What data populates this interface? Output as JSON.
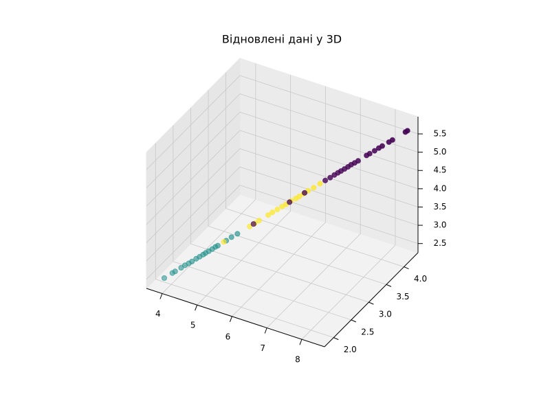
{
  "chart_data": {
    "type": "scatter3d",
    "title": "Відновлені дані у 3D",
    "xlim": [
      3.55,
      8.65
    ],
    "ylim": [
      1.74,
      4.4
    ],
    "zlim": [
      2.25,
      5.97
    ],
    "xticks": [
      4,
      5,
      6,
      7,
      8
    ],
    "yticks": [
      {
        "value": 2.0,
        "label": "2.0"
      },
      2.5,
      {
        "value": 3.0,
        "label": "3.0"
      },
      3.5,
      {
        "value": 4.0,
        "label": "4.0"
      }
    ],
    "zticks": [
      2.5,
      {
        "value": 3.0,
        "label": "3.0"
      },
      3.5,
      {
        "value": 4.0,
        "label": "4.0"
      },
      4.5,
      {
        "value": 5.0,
        "label": "5.0"
      },
      5.5
    ],
    "grid": true,
    "series": [
      {
        "color": "#21918c",
        "x": [
          3.8,
          3.96,
          4.01,
          4.13,
          4.2,
          4.28,
          4.34,
          4.42,
          4.49,
          4.56,
          4.61,
          4.67,
          4.74,
          4.8,
          4.85,
          5.01,
          5.11,
          5.23
        ],
        "y": [
          2.0,
          2.07,
          2.1,
          2.15,
          2.19,
          2.22,
          2.25,
          2.29,
          2.32,
          2.35,
          2.37,
          2.4,
          2.43,
          2.46,
          2.48,
          2.56,
          2.61,
          2.66
        ],
        "z": [
          2.36,
          2.48,
          2.51,
          2.6,
          2.65,
          2.7,
          2.74,
          2.8,
          2.85,
          2.9,
          2.94,
          2.98,
          3.03,
          3.08,
          3.11,
          3.22,
          3.3,
          3.38
        ]
      },
      {
        "color": "#fde725",
        "x": [
          4.96,
          5.47,
          5.57,
          5.65,
          5.83,
          5.91,
          6.01,
          6.1,
          6.18,
          6.27,
          6.37,
          6.44,
          6.52,
          6.61,
          6.72,
          6.84
        ],
        "y": [
          2.54,
          2.77,
          2.82,
          2.86,
          2.94,
          2.98,
          3.02,
          3.07,
          3.1,
          3.15,
          3.19,
          3.22,
          3.26,
          3.3,
          3.35,
          3.41
        ],
        "z": [
          3.19,
          3.55,
          3.62,
          3.68,
          3.81,
          3.87,
          3.94,
          4.0,
          4.06,
          4.13,
          4.19,
          4.24,
          4.3,
          4.37,
          4.44,
          4.53
        ]
      },
      {
        "color": "#440154",
        "x": [
          5.54,
          6.25,
          6.54,
          6.94,
          7.04,
          7.12,
          7.19,
          7.25,
          7.32,
          7.39,
          7.45,
          7.52,
          7.59,
          7.75,
          7.81,
          7.91,
          7.99,
          8.06,
          8.19,
          8.26,
          8.51,
          8.55
        ],
        "y": [
          2.81,
          3.13,
          3.27,
          3.46,
          3.5,
          3.54,
          3.57,
          3.6,
          3.63,
          3.66,
          3.69,
          3.72,
          3.75,
          3.83,
          3.86,
          3.9,
          3.94,
          3.97,
          4.03,
          4.06,
          4.18,
          4.2
        ],
        "z": [
          3.6,
          4.11,
          4.32,
          4.6,
          4.67,
          4.73,
          4.78,
          4.82,
          4.87,
          4.92,
          4.97,
          5.01,
          5.06,
          5.18,
          5.22,
          5.29,
          5.35,
          5.4,
          5.49,
          5.54,
          5.72,
          5.75
        ]
      }
    ]
  }
}
